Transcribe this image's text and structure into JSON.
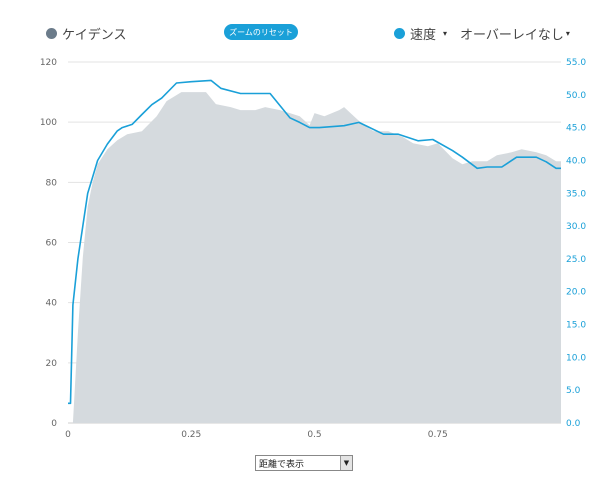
{
  "legend": {
    "cadence_label": "ケイデンス",
    "speed_label": "速度",
    "overlay_label": "オーバーレイなし",
    "caret": "▾",
    "cadence_color": "#6b7b8a",
    "speed_color": "#1aa0d8"
  },
  "reset_zoom_label": "ズームのリセット",
  "x_mode_select": {
    "value": "距離で表示",
    "arrow": "▼"
  },
  "chart_data": {
    "type": "area",
    "xlim": [
      0,
      1
    ],
    "x_ticks": [
      "0",
      "0.25",
      "0.5",
      "0.75"
    ],
    "x_tick_values": [
      0,
      0.25,
      0.5,
      0.75
    ],
    "left_axis": {
      "ylim": [
        0,
        120
      ],
      "ticks": [
        "0",
        "20",
        "40",
        "60",
        "80",
        "100",
        "120"
      ]
    },
    "right_axis": {
      "ylim": [
        0,
        55
      ],
      "ticks": [
        "0.0",
        "5.0",
        "10.0",
        "15.0",
        "20.0",
        "25.0",
        "30.0",
        "35.0",
        "40.0",
        "45.0",
        "50.0",
        "55.0"
      ]
    },
    "grid": true,
    "series": [
      {
        "name": "ケイデンス",
        "axis": "left",
        "type": "area",
        "color": "#d5dade",
        "x": [
          0.01,
          0.02,
          0.03,
          0.04,
          0.05,
          0.06,
          0.08,
          0.1,
          0.12,
          0.15,
          0.18,
          0.2,
          0.23,
          0.25,
          0.28,
          0.3,
          0.33,
          0.35,
          0.38,
          0.4,
          0.43,
          0.45,
          0.47,
          0.49,
          0.5,
          0.52,
          0.55,
          0.56,
          0.58,
          0.6,
          0.62,
          0.65,
          0.68,
          0.7,
          0.73,
          0.75,
          0.78,
          0.8,
          0.82,
          0.85,
          0.87,
          0.9,
          0.92,
          0.95,
          0.97,
          0.99
        ],
        "values": [
          0,
          30,
          55,
          72,
          80,
          86,
          91,
          94,
          96,
          97,
          102,
          107,
          110,
          110,
          110,
          106,
          105,
          104,
          104,
          105,
          104,
          103,
          102,
          99,
          103,
          102,
          104,
          105,
          102,
          99,
          97,
          97,
          95,
          93,
          92,
          93,
          88,
          86,
          87,
          87,
          89,
          90,
          91,
          90,
          89,
          87
        ]
      },
      {
        "name": "速度",
        "axis": "right",
        "type": "line",
        "color": "#1aa0d8",
        "x": [
          0.0,
          0.005,
          0.01,
          0.02,
          0.03,
          0.04,
          0.05,
          0.06,
          0.08,
          0.1,
          0.11,
          0.13,
          0.15,
          0.17,
          0.19,
          0.22,
          0.25,
          0.29,
          0.31,
          0.35,
          0.38,
          0.41,
          0.45,
          0.47,
          0.49,
          0.51,
          0.56,
          0.59,
          0.64,
          0.67,
          0.71,
          0.74,
          0.78,
          0.8,
          0.83,
          0.85,
          0.88,
          0.91,
          0.93,
          0.95,
          0.97,
          0.99
        ],
        "values": [
          3.0,
          3.0,
          18.0,
          25.0,
          30.0,
          35.0,
          37.5,
          40.0,
          42.5,
          44.5,
          45.0,
          45.5,
          47.0,
          48.5,
          49.5,
          51.8,
          52.0,
          52.2,
          51.0,
          50.2,
          50.2,
          50.2,
          46.5,
          45.8,
          45.0,
          45.0,
          45.3,
          45.8,
          44.0,
          44.0,
          43.0,
          43.2,
          41.5,
          40.5,
          38.8,
          39.0,
          39.0,
          40.5,
          40.5,
          40.5,
          39.8,
          38.8
        ]
      }
    ]
  }
}
